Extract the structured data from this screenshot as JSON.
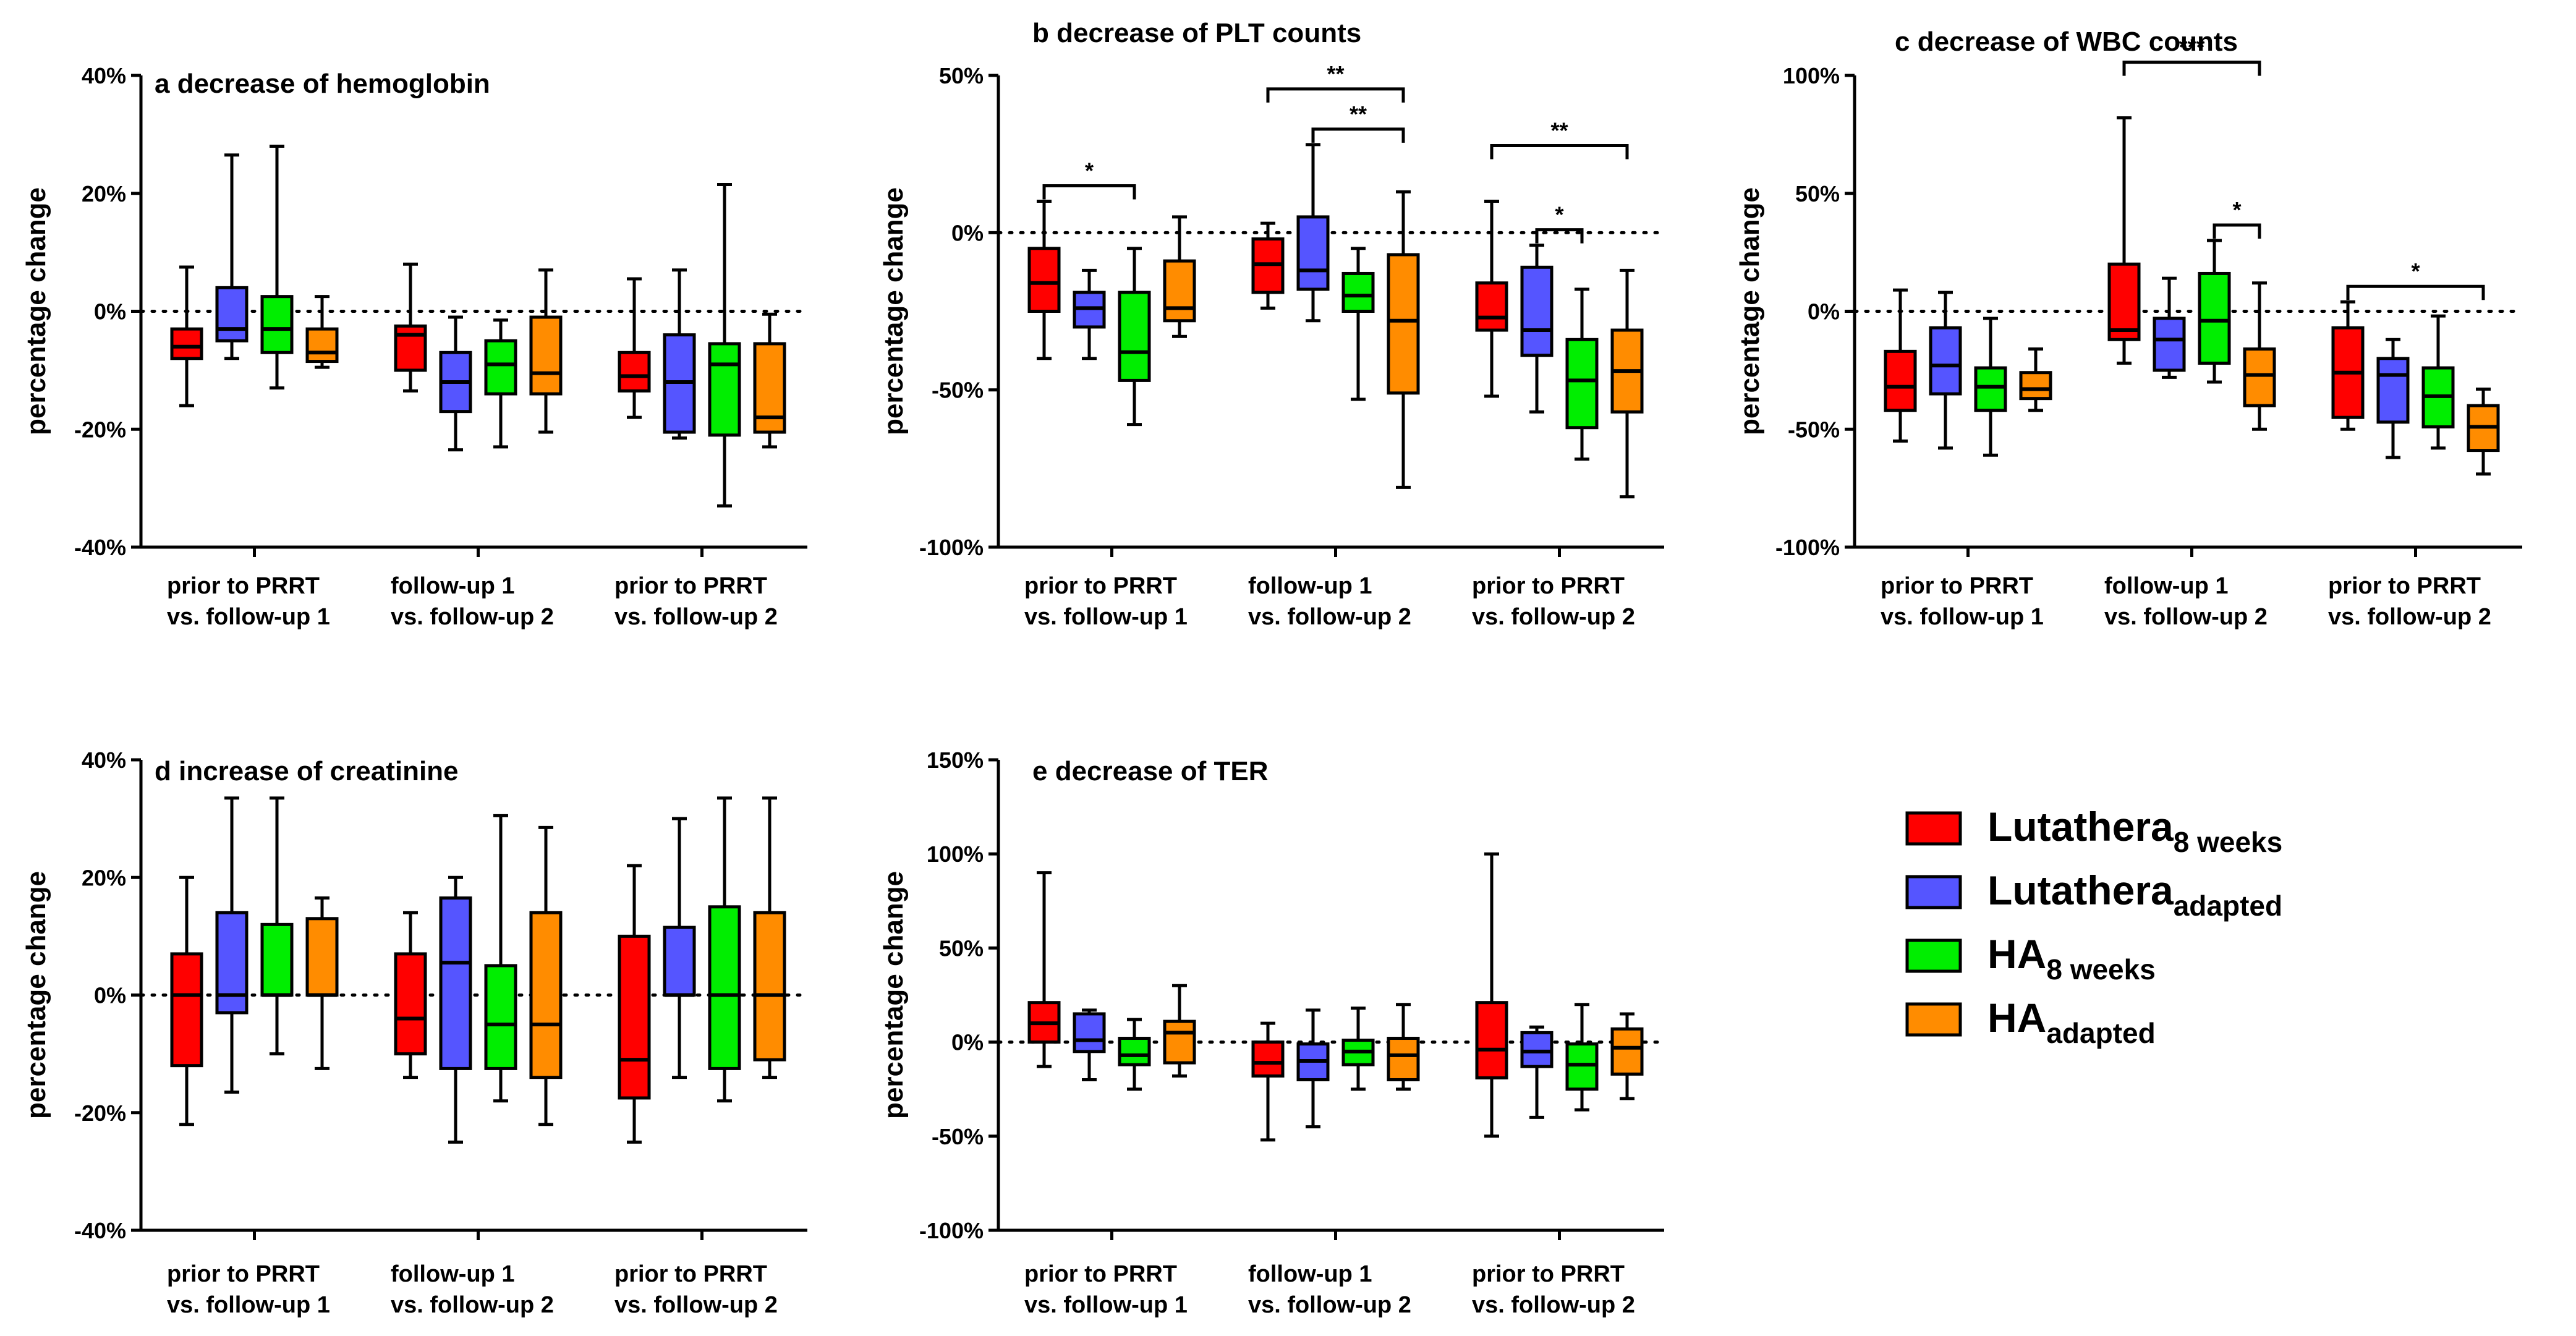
{
  "series_colors": [
    "#ff0000",
    "#5555ff",
    "#00ee00",
    "#ff8c00"
  ],
  "legend": [
    {
      "main": "Lutathera",
      "sub": "8 weeks"
    },
    {
      "main": "Lutathera",
      "sub": "adapted"
    },
    {
      "main": "HA",
      "sub": "8 weeks"
    },
    {
      "main": "HA",
      "sub": "adapted"
    }
  ],
  "chart_data": [
    {
      "id": "a",
      "type": "box",
      "title": "a decrease of hemoglobin",
      "ylabel": "percentage change",
      "ylim": [
        -40,
        40
      ],
      "ticks": [
        40,
        20,
        0,
        -20,
        -40
      ],
      "reference_line": 0,
      "categories": [
        [
          "prior to PRRT",
          "vs. follow-up 1"
        ],
        [
          "follow-up 1",
          "vs. follow-up 2"
        ],
        [
          "prior to PRRT",
          "vs. follow-up 2"
        ]
      ],
      "series": [
        "Lutathera 8 weeks",
        "Lutathera adapted",
        "HA 8 weeks",
        "HA adapted"
      ],
      "boxes": [
        [
          [
            -16,
            -8,
            -6,
            -3,
            7.5
          ],
          [
            -8,
            -5,
            -3,
            4,
            26.5
          ],
          [
            -13,
            -7,
            -3,
            2.5,
            28
          ],
          [
            -9.5,
            -8.5,
            -7,
            -3,
            2.5
          ]
        ],
        [
          [
            -13.5,
            -10,
            -4,
            -2.5,
            8
          ],
          [
            -23.5,
            -17,
            -12,
            -7,
            -1
          ],
          [
            -23,
            -14,
            -9,
            -5,
            -1.5
          ],
          [
            -20.5,
            -14,
            -10.5,
            -1,
            7
          ]
        ],
        [
          [
            -18,
            -13.5,
            -11,
            -7,
            5.5
          ],
          [
            -21.5,
            -20.5,
            -12,
            -4,
            7
          ],
          [
            -33,
            -21,
            -9,
            -5.5,
            21.5
          ],
          [
            -23,
            -20.5,
            -18,
            -5.5,
            -0.5
          ]
        ]
      ],
      "significance": []
    },
    {
      "id": "b",
      "type": "box",
      "title": "b decrease of PLT counts",
      "ylabel": "percentage change",
      "ylim": [
        -100,
        50
      ],
      "ticks": [
        50,
        0,
        -50,
        -100
      ],
      "reference_line": 0,
      "categories": [
        [
          "prior to PRRT",
          "vs. follow-up 1"
        ],
        [
          "follow-up 1",
          "vs. follow-up 2"
        ],
        [
          "prior to PRRT",
          "vs. follow-up 2"
        ]
      ],
      "series": [
        "Lutathera 8 weeks",
        "Lutathera adapted",
        "HA 8 weeks",
        "HA adapted"
      ],
      "boxes": [
        [
          [
            -40,
            -25,
            -16,
            -5,
            10
          ],
          [
            -40,
            -30,
            -24,
            -19,
            -12
          ],
          [
            -61,
            -47,
            -38,
            -19,
            -5
          ],
          [
            -33,
            -28,
            -24,
            -9,
            5
          ]
        ],
        [
          [
            -24,
            -19,
            -10,
            -2,
            3
          ],
          [
            -28,
            -18,
            -12,
            5,
            28
          ],
          [
            -53,
            -25,
            -20,
            -13,
            -5
          ],
          [
            -81,
            -51,
            -28,
            -7,
            13
          ]
        ],
        [
          [
            -52,
            -31,
            -27,
            -16,
            10
          ],
          [
            -57,
            -39,
            -31,
            -11,
            -4
          ],
          [
            -72,
            -62,
            -47,
            -34,
            -18
          ],
          [
            -84,
            -57,
            -44,
            -31,
            -12
          ]
        ]
      ],
      "significance": [
        {
          "group": 0,
          "from": 0,
          "to": 2,
          "label": "*",
          "level": 0
        },
        {
          "group": 1,
          "from": 0,
          "to": 3,
          "label": "**",
          "level": 1
        },
        {
          "group": 1,
          "from": 1,
          "to": 3,
          "label": "**",
          "level": 0
        },
        {
          "group": 2,
          "from": 0,
          "to": 3,
          "label": "**",
          "level": 1
        },
        {
          "group": 2,
          "from": 1,
          "to": 2,
          "label": "*",
          "level": 0
        }
      ]
    },
    {
      "id": "c",
      "type": "box",
      "title": "c decrease of WBC counts",
      "ylabel": "percentage change",
      "ylim": [
        -100,
        100
      ],
      "ticks": [
        100,
        50,
        0,
        -50,
        -100
      ],
      "reference_line": 0,
      "categories": [
        [
          "prior to PRRT",
          "vs. follow-up 1"
        ],
        [
          "follow-up 1",
          "vs. follow-up 2"
        ],
        [
          "prior to PRRT",
          "vs. follow-up 2"
        ]
      ],
      "series": [
        "Lutathera 8 weeks",
        "Lutathera adapted",
        "HA 8 weeks",
        "HA adapted"
      ],
      "boxes": [
        [
          [
            -55,
            -42,
            -32,
            -17,
            9
          ],
          [
            -58,
            -35,
            -23,
            -7,
            8
          ],
          [
            -61,
            -42,
            -32,
            -24,
            -3
          ],
          [
            -42,
            -37,
            -33,
            -26,
            -16
          ]
        ],
        [
          [
            -22,
            -12,
            -8,
            20,
            82
          ],
          [
            -28,
            -25,
            -12,
            -3,
            14
          ],
          [
            -30,
            -22,
            -4,
            16,
            30
          ],
          [
            -50,
            -40,
            -27,
            -16,
            12
          ]
        ],
        [
          [
            -50,
            -45,
            -26,
            -7,
            4
          ],
          [
            -62,
            -47,
            -27,
            -20,
            -12
          ],
          [
            -58,
            -49,
            -36,
            -24,
            -2
          ],
          [
            -69,
            -59,
            -49,
            -40,
            -33
          ]
        ]
      ],
      "significance": [
        {
          "group": 1,
          "from": 0,
          "to": 3,
          "label": "***",
          "level": 1
        },
        {
          "group": 1,
          "from": 2,
          "to": 3,
          "label": "*",
          "level": 0
        },
        {
          "group": 2,
          "from": 0,
          "to": 3,
          "label": "*",
          "level": 0
        }
      ]
    },
    {
      "id": "d",
      "type": "box",
      "title": "d increase of creatinine",
      "ylabel": "percentage change",
      "ylim": [
        -40,
        40
      ],
      "ticks": [
        40,
        20,
        0,
        -20,
        -40
      ],
      "reference_line": 0,
      "categories": [
        [
          "prior to PRRT",
          "vs. follow-up 1"
        ],
        [
          "follow-up 1",
          "vs. follow-up 2"
        ],
        [
          "prior to PRRT",
          "vs. follow-up 2"
        ]
      ],
      "series": [
        "Lutathera 8 weeks",
        "Lutathera adapted",
        "HA 8 weeks",
        "HA adapted"
      ],
      "boxes": [
        [
          [
            -22,
            -12,
            0,
            7,
            20
          ],
          [
            -16.5,
            -3,
            0,
            14,
            33.5
          ],
          [
            -10,
            0,
            0,
            12,
            33.5
          ],
          [
            -12.5,
            0,
            0,
            13,
            16.5
          ]
        ],
        [
          [
            -14,
            -10,
            -4,
            7,
            14
          ],
          [
            -25,
            -12.5,
            5.5,
            16.5,
            20
          ],
          [
            -18,
            -12.5,
            -5,
            5,
            30.5
          ],
          [
            -22,
            -14,
            -5,
            14,
            28.5
          ]
        ],
        [
          [
            -25,
            -17.5,
            -11,
            10,
            22
          ],
          [
            -14,
            0,
            0,
            11.5,
            30
          ],
          [
            -18,
            -12.5,
            0,
            15,
            33.5
          ],
          [
            -14,
            -11,
            0,
            14,
            33.5
          ]
        ]
      ],
      "significance": []
    },
    {
      "id": "e",
      "type": "box",
      "title": "e decrease of TER",
      "ylabel": "percentage change",
      "ylim": [
        -100,
        150
      ],
      "ticks": [
        150,
        100,
        50,
        0,
        -50,
        -100
      ],
      "reference_line": 0,
      "categories": [
        [
          "prior to PRRT",
          "vs. follow-up 1"
        ],
        [
          "follow-up 1",
          "vs. follow-up 2"
        ],
        [
          "prior to PRRT",
          "vs. follow-up 2"
        ]
      ],
      "series": [
        "Lutathera 8 weeks",
        "Lutathera adapted",
        "HA 8 weeks",
        "HA adapted"
      ],
      "boxes": [
        [
          [
            -13,
            0,
            10,
            21,
            90
          ],
          [
            -20,
            -5,
            1,
            15,
            17
          ],
          [
            -25,
            -12,
            -7,
            2,
            12
          ],
          [
            -18,
            -11,
            5,
            11,
            30
          ]
        ],
        [
          [
            -52,
            -18,
            -11,
            0,
            10
          ],
          [
            -45,
            -20,
            -10,
            -1,
            17
          ],
          [
            -25,
            -12,
            -5,
            1,
            18
          ],
          [
            -25,
            -20,
            -7,
            2,
            20
          ]
        ],
        [
          [
            -50,
            -19,
            -4,
            21,
            100
          ],
          [
            -40,
            -13,
            -5,
            5,
            8
          ],
          [
            -36,
            -25,
            -12,
            -1,
            20
          ],
          [
            -30,
            -17,
            -3,
            7,
            15
          ]
        ]
      ],
      "significance": []
    }
  ]
}
